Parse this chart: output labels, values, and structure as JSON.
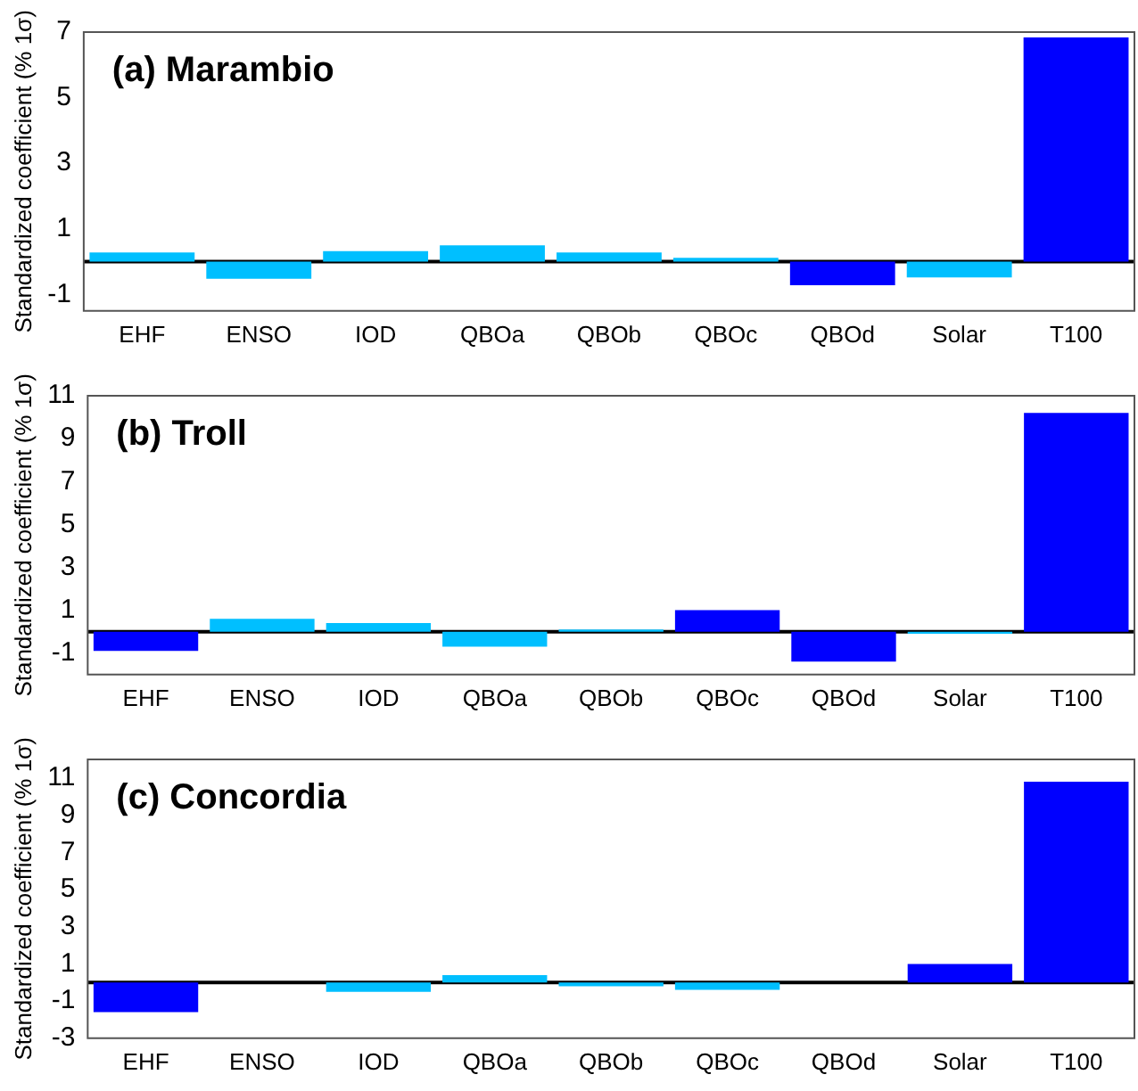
{
  "chart_data": [
    {
      "type": "bar",
      "title": "(a) Marambio",
      "ylabel": "Standardized coefficient (% 1σ)",
      "categories": [
        "EHF",
        "ENSO",
        "IOD",
        "QBOa",
        "QBOb",
        "QBOc",
        "QBOd",
        "Solar",
        "T100"
      ],
      "values": [
        0.28,
        -0.52,
        0.32,
        0.5,
        0.28,
        0.12,
        -0.72,
        -0.48,
        6.84
      ],
      "colors": [
        "#00bfff",
        "#00bfff",
        "#00bfff",
        "#00bfff",
        "#00bfff",
        "#00bfff",
        "#0000ff",
        "#00bfff",
        "#0000ff"
      ],
      "ylim": [
        -1.5,
        7
      ],
      "yticks": [
        -1,
        1,
        3,
        5,
        7
      ],
      "grid": false,
      "legend": false,
      "ref_lines": [
        {
          "axis": "y",
          "value": 0,
          "color": "#000000"
        }
      ]
    },
    {
      "type": "bar",
      "title": "(b) Troll",
      "ylabel": "Standardized coefficient (% 1σ)",
      "categories": [
        "EHF",
        "ENSO",
        "IOD",
        "QBOa",
        "QBOb",
        "QBOc",
        "QBOd",
        "Solar",
        "T100"
      ],
      "values": [
        -0.9,
        0.6,
        0.4,
        -0.7,
        0.1,
        1.0,
        -1.4,
        -0.1,
        10.2
      ],
      "colors": [
        "#0000ff",
        "#00bfff",
        "#00bfff",
        "#00bfff",
        "#00bfff",
        "#0000ff",
        "#0000ff",
        "#00bfff",
        "#0000ff"
      ],
      "ylim": [
        -2,
        11
      ],
      "yticks": [
        -1,
        1,
        3,
        5,
        7,
        9,
        11
      ],
      "grid": false,
      "legend": false,
      "ref_lines": [
        {
          "axis": "y",
          "value": 0,
          "color": "#000000"
        }
      ]
    },
    {
      "type": "bar",
      "title": "(c) Concordia",
      "ylabel": "Standardized coefficient (% 1σ)",
      "categories": [
        "EHF",
        "ENSO",
        "IOD",
        "QBOa",
        "QBOb",
        "QBOc",
        "QBOd",
        "Solar",
        "T100"
      ],
      "values": [
        -1.6,
        0,
        -0.5,
        0.4,
        -0.2,
        -0.4,
        0,
        1.0,
        10.8
      ],
      "colors": [
        "#0000ff",
        "#00bfff",
        "#00bfff",
        "#00bfff",
        "#00bfff",
        "#00bfff",
        "#00bfff",
        "#0000ff",
        "#0000ff"
      ],
      "ylim": [
        -3,
        12
      ],
      "yticks": [
        -3,
        -1,
        1,
        3,
        5,
        7,
        9,
        11
      ],
      "grid": false,
      "legend": false,
      "ref_lines": [
        {
          "axis": "y",
          "value": 0,
          "color": "#000000"
        }
      ]
    }
  ]
}
